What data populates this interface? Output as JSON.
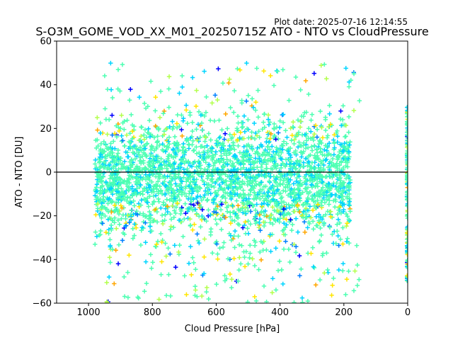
{
  "plot_date": "Plot date: 2025-07-16 12:14:55",
  "chart_data": {
    "type": "scatter",
    "title": "S-O3M_GOME_VOD_XX_M01_20250715Z ATO - NTO vs CloudPressure",
    "xlabel": "Cloud Pressure [hPa]",
    "ylabel": "ATO - NTO [DU]",
    "xlim": [
      1100,
      0
    ],
    "ylim": [
      -60,
      60
    ],
    "x_ticks": [
      1000,
      800,
      600,
      400,
      200,
      0
    ],
    "y_ticks": [
      60,
      40,
      20,
      0,
      -20,
      -40,
      -60
    ],
    "x_tick_labels": [
      "1000",
      "800",
      "600",
      "400",
      "200",
      "0"
    ],
    "y_tick_labels": [
      "60",
      "40",
      "20",
      "0",
      "−20",
      "−40",
      "−60"
    ],
    "reference_line_y": 0,
    "marker": "+",
    "grid": false,
    "colormap": [
      "#0000ff",
      "#0080ff",
      "#00d5ff",
      "#4dffb2",
      "#b3ff4d",
      "#ffe600",
      "#ffa600"
    ],
    "main_cluster": {
      "x_range": [
        980,
        180
      ],
      "core_y_range": [
        -20,
        20
      ],
      "outer_y_range": [
        -55,
        45
      ]
    },
    "edge_cluster": {
      "x": 0,
      "y_range": [
        -50,
        30
      ]
    }
  }
}
